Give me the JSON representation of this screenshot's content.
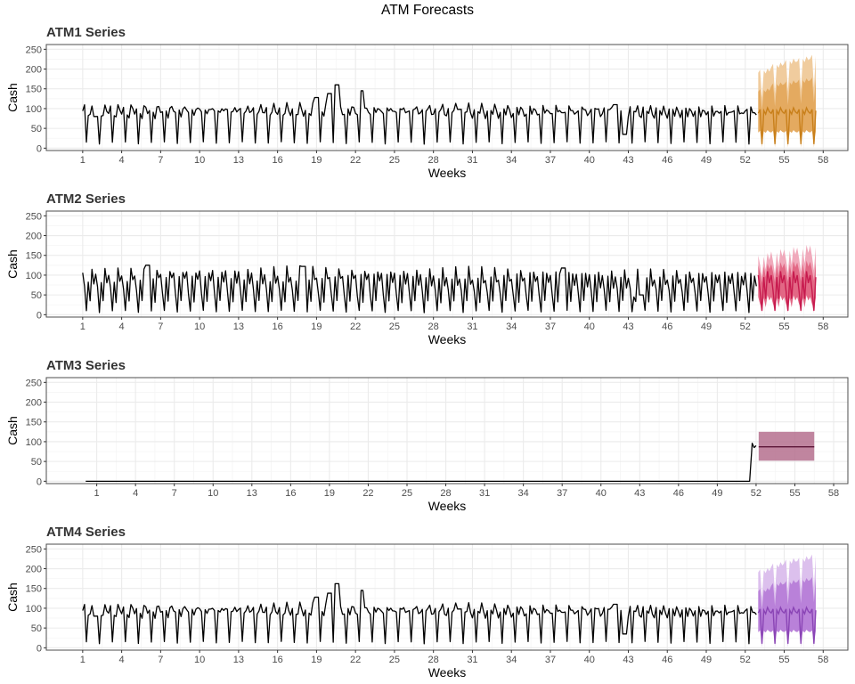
{
  "title": "ATM Forecasts",
  "colors": {
    "history": "#000000",
    "panel_border": "#4d4d4d",
    "grid_major": "#ebebeb",
    "grid_minor": "#f5f5f5"
  },
  "chart_data": [
    {
      "type": "line",
      "title": "ATM1 Series",
      "xlabel": "Weeks",
      "ylabel": "Cash",
      "xlim": [
        -1.8,
        59.9
      ],
      "ylim": [
        -6,
        262
      ],
      "xticks": [
        1,
        4,
        7,
        10,
        13,
        16,
        19,
        22,
        25,
        28,
        31,
        34,
        37,
        40,
        43,
        46,
        49,
        52,
        55,
        58
      ],
      "yticks": [
        0,
        50,
        100,
        150,
        200,
        250
      ],
      "grid": true,
      "history": {
        "start_week": 1,
        "pattern": [
          88,
          98,
          10,
          95,
          86,
          102,
          92
        ],
        "bumps": [
          [
            2,
            80
          ],
          [
            19,
            128
          ],
          [
            20,
            138
          ],
          [
            20.6,
            160
          ],
          [
            22.4,
            145
          ],
          [
            30,
            98
          ],
          [
            42,
            110
          ],
          [
            42.7,
            35
          ]
        ]
      },
      "forecast": {
        "start_week": 53,
        "end_week": 57.4,
        "pattern": [
          88,
          98,
          10,
          95,
          86,
          102,
          92
        ],
        "color": "#c87f1a",
        "inner_color": "#e2a659",
        "outer_color": "#f0cc9e",
        "upper80": [
          150,
          165,
          170,
          175,
          180
        ],
        "upper95": [
          200,
          215,
          225,
          230,
          238
        ],
        "lower80": 15,
        "lower95": 2
      }
    },
    {
      "type": "line",
      "title": "ATM2 Series",
      "xlabel": "Weeks",
      "ylabel": "Cash",
      "xlim": [
        -1.8,
        59.9
      ],
      "ylim": [
        -6,
        262
      ],
      "xticks": [
        1,
        4,
        7,
        10,
        13,
        16,
        19,
        22,
        25,
        28,
        31,
        34,
        37,
        40,
        43,
        46,
        49,
        52,
        55,
        58
      ],
      "yticks": [
        0,
        50,
        100,
        150,
        200,
        250
      ],
      "grid": true,
      "history": {
        "start_week": 1,
        "pattern": [
          100,
          60,
          5,
          95,
          30,
          110,
          80
        ],
        "bumps": [
          [
            6,
            125
          ],
          [
            18,
            122
          ],
          [
            38,
            118
          ],
          [
            43.5,
            45
          ],
          [
            44,
            50
          ]
        ]
      },
      "forecast": {
        "start_week": 53,
        "end_week": 57.4,
        "pattern": [
          100,
          60,
          10,
          95,
          40,
          110,
          80
        ],
        "color": "#c71a4e",
        "inner_color": "#e0607f",
        "outer_color": "#f0a9bb",
        "upper80": [
          125,
          128,
          130,
          132,
          134
        ],
        "upper95": [
          150,
          160,
          165,
          170,
          175
        ],
        "lower80": 20,
        "lower95": 5
      }
    },
    {
      "type": "line",
      "title": "ATM3 Series",
      "xlabel": "Weeks",
      "ylabel": "Cash",
      "xlim": [
        -2.9,
        59.1
      ],
      "ylim": [
        -6,
        262
      ],
      "xticks": [
        1,
        4,
        7,
        10,
        13,
        16,
        19,
        22,
        25,
        28,
        31,
        34,
        37,
        40,
        43,
        46,
        49,
        52,
        55,
        58
      ],
      "yticks": [
        0,
        50,
        100,
        150,
        200,
        250
      ],
      "grid": true,
      "history": {
        "points": [
          [
            0.15,
            0
          ],
          [
            51.5,
            0
          ],
          [
            51.7,
            96
          ],
          [
            51.85,
            85
          ],
          [
            52.0,
            90
          ]
        ]
      },
      "forecast": {
        "start_week": 52.2,
        "end_week": 56.5,
        "mean": 87,
        "color": "#5a1436",
        "band_color": "#b5708e",
        "lower": 52,
        "upper": 125
      }
    },
    {
      "type": "line",
      "title": "ATM4 Series",
      "xlabel": "Weeks",
      "ylabel": "Cash",
      "xlim": [
        -1.8,
        59.9
      ],
      "ylim": [
        -6,
        262
      ],
      "xticks": [
        1,
        4,
        7,
        10,
        13,
        16,
        19,
        22,
        25,
        28,
        31,
        34,
        37,
        40,
        43,
        46,
        49,
        52,
        55,
        58
      ],
      "yticks": [
        0,
        50,
        100,
        150,
        200,
        250
      ],
      "grid": true,
      "history": {
        "start_week": 1,
        "pattern": [
          88,
          98,
          10,
          95,
          86,
          102,
          92
        ],
        "bumps": [
          [
            2,
            80
          ],
          [
            19,
            128
          ],
          [
            20,
            138
          ],
          [
            20.6,
            162
          ],
          [
            22.4,
            145
          ],
          [
            30,
            98
          ],
          [
            42,
            110
          ],
          [
            42.7,
            35
          ]
        ]
      },
      "forecast": {
        "start_week": 53,
        "end_week": 57.4,
        "pattern": [
          88,
          98,
          10,
          95,
          86,
          102,
          92
        ],
        "color": "#8a44b5",
        "inner_color": "#b57ad6",
        "outer_color": "#dcc0ed",
        "upper80": [
          150,
          165,
          170,
          175,
          180
        ],
        "upper95": [
          200,
          215,
          225,
          230,
          238
        ],
        "lower80": 15,
        "lower95": 2
      }
    }
  ]
}
